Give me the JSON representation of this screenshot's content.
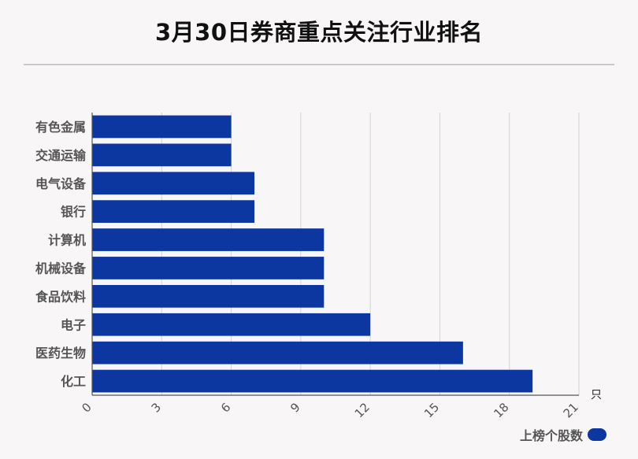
{
  "chart_data": {
    "type": "bar",
    "orientation": "horizontal",
    "title": "3月30日券商重点关注行业排名",
    "categories": [
      "有色金属",
      "交通运输",
      "电气设备",
      "银行",
      "计算机",
      "机械设备",
      "食品饮料",
      "电子",
      "医药生物",
      "化工"
    ],
    "series": [
      {
        "name": "上榜个股数",
        "values": [
          6,
          6,
          7,
          7,
          10,
          10,
          10,
          12,
          16,
          19
        ]
      }
    ],
    "xticks": [
      0,
      3,
      6,
      9,
      12,
      15,
      18,
      21
    ],
    "xlim": [
      0,
      21
    ],
    "xunit": "只",
    "grid": true,
    "legend_position": "bottom-right",
    "bar_color": "#0c36a0"
  }
}
